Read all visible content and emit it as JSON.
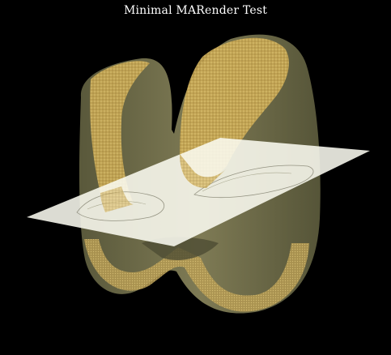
{
  "window": {
    "title": "Minimal MARender Test"
  },
  "colors": {
    "background": "#000000",
    "surface": "#7d7a52",
    "surface_dark": "#5b5a3c",
    "point_cloud": "#d2b25a",
    "section_plane": "#fbfbf0",
    "title_text": "#ffffff"
  },
  "scene": {
    "object": "femur-condyle-mesh",
    "section_plane": "cutting-plane"
  }
}
